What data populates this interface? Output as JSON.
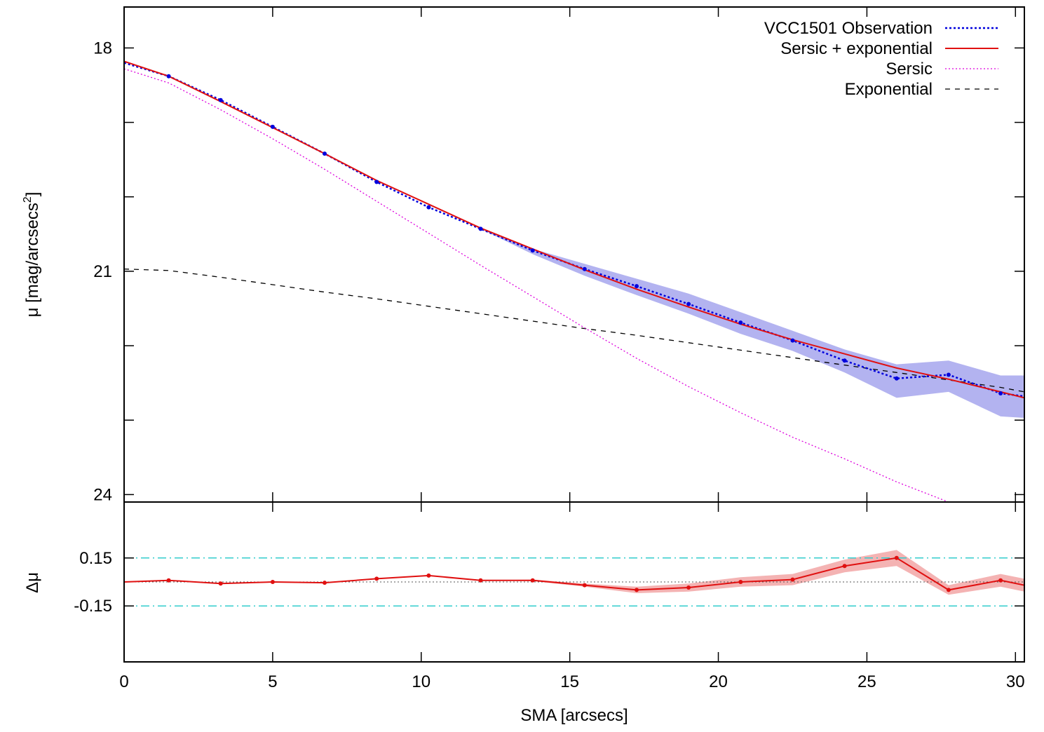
{
  "chart_data": [
    {
      "type": "line",
      "xlabel": "",
      "ylabel_main": "μ [mag/arcsecs",
      "ylabel_sup": "2",
      "ylabel_tail": "]",
      "xlim": [
        0,
        30.3
      ],
      "ylim": [
        24.1,
        17.45
      ],
      "y_inverted": true,
      "yticks": [
        18,
        19,
        20,
        21,
        22,
        23,
        24
      ],
      "ytick_labels": [
        "18",
        "",
        "",
        "21",
        "",
        "",
        "24"
      ],
      "xticks": [
        0,
        5,
        10,
        15,
        20,
        25,
        30
      ],
      "grid": false,
      "legend_position": "top-right",
      "legend": [
        {
          "label": "VCC1501 Observation",
          "color": "#0000dd",
          "style": "dotted"
        },
        {
          "label": "Sersic + exponential",
          "color": "#e01010",
          "style": "solid"
        },
        {
          "label": "Sersic",
          "color": "#dd00dd",
          "style": "dotted"
        },
        {
          "label": "Exponential",
          "color": "#000000",
          "style": "dashed"
        }
      ],
      "series": [
        {
          "name": "VCC1501 Observation",
          "x": [
            0,
            1.5,
            3.25,
            5.0,
            6.75,
            8.5,
            10.25,
            12.0,
            13.75,
            15.5,
            17.25,
            19.0,
            20.75,
            22.5,
            24.25,
            26.0,
            27.75,
            29.5,
            30.3
          ],
          "y": [
            18.2,
            18.38,
            18.7,
            19.06,
            19.42,
            19.8,
            20.14,
            20.43,
            20.72,
            20.97,
            21.2,
            21.44,
            21.69,
            21.93,
            22.2,
            22.44,
            22.39,
            22.64,
            22.68
          ],
          "err_low": [
            18.2,
            18.38,
            18.7,
            19.06,
            19.42,
            19.8,
            20.14,
            20.43,
            20.7,
            20.9,
            21.1,
            21.3,
            21.55,
            21.8,
            22.05,
            22.25,
            22.2,
            22.4,
            22.4
          ],
          "err_high": [
            18.2,
            18.38,
            18.7,
            19.06,
            19.42,
            19.8,
            20.14,
            20.43,
            20.77,
            21.06,
            21.32,
            21.57,
            21.84,
            22.07,
            22.36,
            22.7,
            22.62,
            22.95,
            22.97
          ]
        },
        {
          "name": "Sersic + exponential",
          "x": [
            0,
            1.5,
            3.25,
            5.0,
            6.75,
            8.5,
            10.25,
            12.0,
            13.75,
            15.5,
            17.25,
            19.0,
            20.75,
            22.5,
            24.25,
            26.0,
            27.75,
            29.5,
            30.3
          ],
          "y": [
            18.18,
            18.38,
            18.72,
            19.07,
            19.42,
            19.78,
            20.1,
            20.42,
            20.7,
            20.98,
            21.24,
            21.48,
            21.71,
            21.92,
            22.11,
            22.3,
            22.45,
            22.62,
            22.7
          ]
        },
        {
          "name": "Sersic",
          "x": [
            0,
            1.5,
            3.25,
            5.0,
            6.75,
            8.5,
            10.25,
            12.0,
            13.75,
            15.5,
            17.25,
            19.0,
            20.75,
            22.5,
            24.25,
            26.0,
            27.75,
            29.5,
            30.3
          ],
          "y": [
            18.28,
            18.47,
            18.83,
            19.22,
            19.63,
            20.06,
            20.49,
            20.92,
            21.34,
            21.76,
            22.17,
            22.55,
            22.9,
            23.23,
            23.52,
            23.83,
            24.1,
            24.38,
            24.5
          ]
        },
        {
          "name": "Exponential",
          "x": [
            0,
            1.5,
            3.25,
            5.0,
            6.75,
            8.5,
            10.25,
            12.0,
            13.75,
            15.5,
            17.25,
            19.0,
            20.75,
            22.5,
            24.25,
            26.0,
            27.75,
            29.5,
            30.3
          ],
          "y": [
            20.97,
            20.99,
            21.08,
            21.18,
            21.28,
            21.37,
            21.47,
            21.57,
            21.67,
            21.77,
            21.86,
            21.96,
            22.06,
            22.16,
            22.26,
            22.36,
            22.46,
            22.56,
            22.62
          ]
        }
      ]
    },
    {
      "type": "line",
      "xlabel": "SMA [arcsecs]",
      "ylabel": "Δμ",
      "xlim": [
        0,
        30.3
      ],
      "ylim": [
        -0.5,
        0.5
      ],
      "yticks": [
        -0.15,
        0.15
      ],
      "ytick_labels": [
        "-0.15",
        "0.15"
      ],
      "xticks": [
        0,
        5,
        10,
        15,
        20,
        25,
        30
      ],
      "xtick_labels": [
        "0",
        "5",
        "10",
        "15",
        "20",
        "25",
        "30"
      ],
      "reference_lines": [
        {
          "y": 0.15,
          "color": "#33cccc",
          "style": "dash-dot"
        },
        {
          "y": -0.15,
          "color": "#33cccc",
          "style": "dash-dot"
        },
        {
          "y": 0.0,
          "color": "#555555",
          "style": "dotted"
        }
      ],
      "series": [
        {
          "name": "",
          "color": "#e01010",
          "x": [
            0,
            1.5,
            3.25,
            5.0,
            6.75,
            8.5,
            10.25,
            12.0,
            13.75,
            15.5,
            17.25,
            19.0,
            20.75,
            22.5,
            24.25,
            26.0,
            27.75,
            29.5,
            30.3
          ],
          "y": [
            0.0,
            0.01,
            -0.01,
            0.0,
            -0.005,
            0.02,
            0.04,
            0.01,
            0.01,
            -0.02,
            -0.05,
            -0.035,
            0.0,
            0.015,
            0.1,
            0.15,
            -0.05,
            0.01,
            -0.02
          ],
          "err_low": [
            0.0,
            0.01,
            -0.01,
            0.0,
            -0.005,
            0.02,
            0.04,
            0.01,
            0.005,
            -0.03,
            -0.07,
            -0.06,
            -0.03,
            -0.02,
            0.06,
            0.1,
            -0.08,
            -0.03,
            -0.06
          ],
          "err_high": [
            0.0,
            0.01,
            -0.01,
            0.0,
            -0.005,
            0.02,
            0.04,
            0.01,
            0.015,
            -0.01,
            -0.03,
            -0.01,
            0.03,
            0.05,
            0.14,
            0.2,
            -0.02,
            0.05,
            0.02
          ],
          "marker_x": [
            1.5,
            3.25,
            5.0,
            6.75,
            8.5,
            10.25,
            12.0,
            13.75,
            15.5,
            17.25,
            19.0,
            20.75,
            22.5,
            24.25,
            26.0,
            27.75,
            29.5
          ]
        }
      ]
    }
  ]
}
